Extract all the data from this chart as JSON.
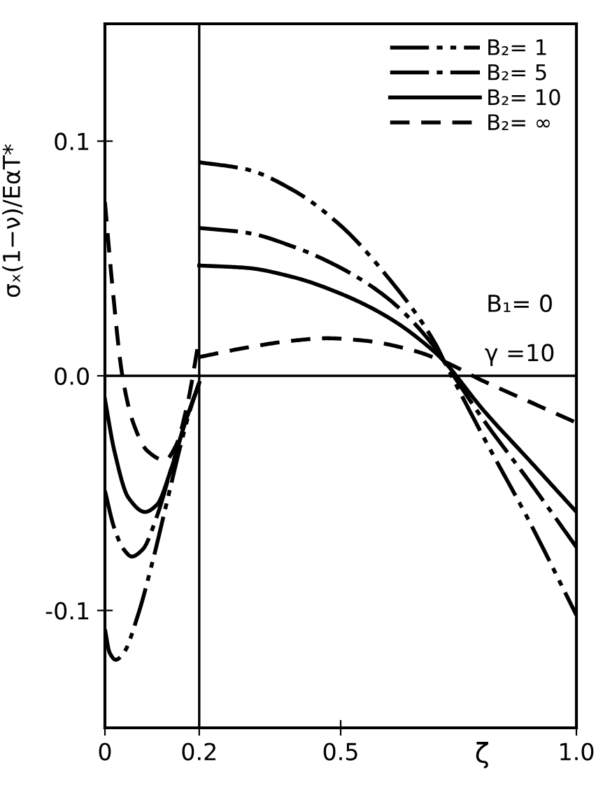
{
  "chart_data": {
    "type": "line",
    "xlabel": "ζ",
    "ylabel": "σₓ(1−ν)/EαT*",
    "xlim": [
      0,
      1.0
    ],
    "ylim": [
      -0.15,
      0.15
    ],
    "xticks": [
      0,
      0.2,
      0.5,
      {
        "value": 1.0,
        "label": "1.0"
      }
    ],
    "yticks": [
      {
        "value": -0.1,
        "label": "-0.1"
      },
      {
        "value": 0.0,
        "label": "0.0"
      },
      0.1
    ],
    "grid": false,
    "legend": "top right",
    "marker": "none",
    "ref_lines": [
      {
        "axis": "x",
        "value": 0.2,
        "color": "#000000",
        "line_style": "solid"
      },
      {
        "axis": "y",
        "value": 0.0,
        "color": "#000000",
        "line_style": "solid"
      }
    ],
    "annotations": [
      "B₁= 0",
      "γ =10"
    ],
    "series": [
      {
        "name": "B₂= 1",
        "color": "#000000",
        "line_style": "dashdotdot",
        "x": [
          0.2,
          0.3,
          0.4,
          0.5,
          0.6,
          0.7,
          0.72,
          0.8,
          0.9,
          1.0
        ],
        "values": [
          0.091,
          0.088,
          0.079,
          0.064,
          0.042,
          0.014,
          0.006,
          -0.025,
          -0.062,
          -0.102
        ]
      },
      {
        "name": "B₂= 5",
        "color": "#000000",
        "line_style": "dashdot",
        "x": [
          0.2,
          0.3,
          0.4,
          0.5,
          0.6,
          0.7,
          0.72,
          0.8,
          0.9,
          1.0
        ],
        "values": [
          0.063,
          0.061,
          0.055,
          0.046,
          0.033,
          0.012,
          0.006,
          -0.018,
          -0.045,
          -0.073
        ]
      },
      {
        "name": "B₂= 10",
        "color": "#000000",
        "line_style": "solid",
        "x": [
          0.2,
          0.3,
          0.4,
          0.5,
          0.6,
          0.7,
          0.72,
          0.8,
          0.9,
          1.0
        ],
        "values": [
          0.047,
          0.046,
          0.042,
          0.035,
          0.025,
          0.01,
          0.006,
          -0.014,
          -0.036,
          -0.058
        ]
      },
      {
        "name": "B₂= ∞",
        "color": "#000000",
        "line_style": "dashed",
        "x": [
          0.2,
          0.3,
          0.4,
          0.47,
          0.55,
          0.65,
          0.72,
          0.8,
          0.9,
          1.0
        ],
        "values": [
          0.008,
          0.012,
          0.015,
          0.016,
          0.015,
          0.011,
          0.006,
          -0.002,
          -0.011,
          -0.02
        ]
      },
      {
        "color": "#000000",
        "line_style": "dashdotdot",
        "x": [
          0,
          0.01,
          0.023,
          0.04,
          0.07,
          0.1,
          0.13,
          0.16,
          0.18,
          0.2
        ],
        "values": [
          -0.108,
          -0.118,
          -0.121,
          -0.118,
          -0.102,
          -0.08,
          -0.055,
          -0.03,
          -0.015,
          -0.003
        ]
      },
      {
        "color": "#000000",
        "line_style": "dashdot",
        "x": [
          0,
          0.02,
          0.04,
          0.057,
          0.08,
          0.11,
          0.14,
          0.17,
          0.2
        ],
        "values": [
          -0.049,
          -0.065,
          -0.074,
          -0.077,
          -0.074,
          -0.06,
          -0.04,
          -0.02,
          -0.003
        ]
      },
      {
        "color": "#000000",
        "line_style": "solid",
        "x": [
          0,
          0.02,
          0.05,
          0.085,
          0.11,
          0.14,
          0.17,
          0.2
        ],
        "values": [
          -0.01,
          -0.032,
          -0.052,
          -0.058,
          -0.055,
          -0.04,
          -0.02,
          -0.003
        ]
      },
      {
        "color": "#000000",
        "line_style": "dashed",
        "x": [
          0,
          0.015,
          0.037,
          0.06,
          0.09,
          0.127,
          0.15,
          0.175,
          0.2
        ],
        "values": [
          0.074,
          0.04,
          0.0,
          -0.02,
          -0.032,
          -0.036,
          -0.03,
          -0.012,
          0.016
        ]
      }
    ]
  }
}
